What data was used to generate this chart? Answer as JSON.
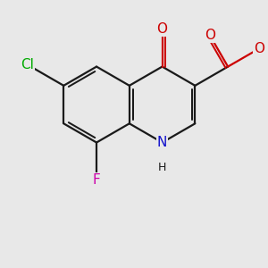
{
  "bg_color": "#e8e8e8",
  "bond_color": "#1a1a1a",
  "bond_width": 1.6,
  "atom_colors": {
    "N": "#1010cc",
    "O": "#cc0000",
    "Cl": "#00aa00",
    "F": "#cc00aa",
    "H": "#1a1a1a",
    "C": "#1a1a1a"
  },
  "font_size_atom": 11,
  "font_size_small": 9,
  "xlim": [
    -4.5,
    5.5
  ],
  "ylim": [
    -4.0,
    4.0
  ]
}
